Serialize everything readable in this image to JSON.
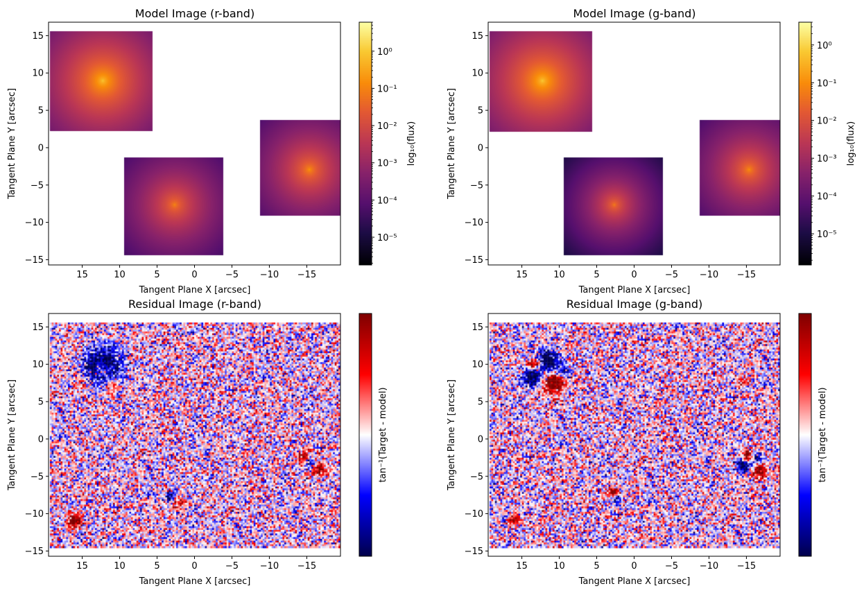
{
  "chart_data": [
    {
      "type": "image",
      "title": "Model Image (r-band)",
      "xlabel": "Tangent Plane X [arcsec]",
      "ylabel": "Tangent Plane Y [arcsec]",
      "xlim": [
        19.5,
        -19.5
      ],
      "ylim": [
        -15.7,
        16.8
      ],
      "x_ticks": [
        "15",
        "10",
        "5",
        "0",
        "−5",
        "−10",
        "−15"
      ],
      "y_ticks": [
        "15",
        "10",
        "5",
        "0",
        "−5",
        "−10",
        "−15"
      ],
      "colormap": "inferno",
      "scale": "log",
      "colorbar_label": "log₁₀(flux)",
      "colorbar_ticks": [
        "10⁰",
        "10⁻¹",
        "10⁻²",
        "10⁻³",
        "10⁻⁴",
        "10⁻⁵"
      ],
      "colorbar_range": [
        1.8e-06,
        6.0
      ],
      "sources": [
        {
          "x_range": [
            19.3,
            5.6
          ],
          "y_range": [
            2.2,
            15.6
          ],
          "center": [
            12.3,
            9.0
          ],
          "peak": 1.3,
          "floor": 0.0002
        },
        {
          "x_range": [
            9.4,
            -3.8
          ],
          "y_range": [
            -14.4,
            -1.3
          ],
          "center": [
            2.7,
            -7.6
          ],
          "peak": 0.15,
          "floor": 4e-05
        },
        {
          "x_range": [
            -8.8,
            -19.5
          ],
          "y_range": [
            -9.1,
            3.7
          ],
          "center": [
            -15.3,
            -2.9
          ],
          "peak": 0.25,
          "floor": 6e-05
        }
      ]
    },
    {
      "type": "image",
      "title": "Model Image (g-band)",
      "xlabel": "Tangent Plane X [arcsec]",
      "ylabel": "Tangent Plane Y [arcsec]",
      "xlim": [
        19.5,
        -19.5
      ],
      "ylim": [
        -15.7,
        16.8
      ],
      "x_ticks": [
        "15",
        "10",
        "5",
        "0",
        "−5",
        "−10",
        "−15"
      ],
      "y_ticks": [
        "15",
        "10",
        "5",
        "0",
        "−5",
        "−10",
        "−15"
      ],
      "colormap": "inferno",
      "scale": "log",
      "colorbar_label": "log₁₀(flux)",
      "colorbar_ticks": [
        "10⁰",
        "10⁻¹",
        "10⁻²",
        "10⁻³",
        "10⁻⁴",
        "10⁻⁵"
      ],
      "colorbar_range": [
        1.5e-06,
        4.0
      ],
      "sources": [
        {
          "x_range": [
            19.3,
            5.6
          ],
          "y_range": [
            2.1,
            15.6
          ],
          "center": [
            12.3,
            9.0
          ],
          "peak": 1.0,
          "floor": 0.0002
        },
        {
          "x_range": [
            9.4,
            -3.8
          ],
          "y_range": [
            -14.4,
            -1.3
          ],
          "center": [
            2.7,
            -7.6
          ],
          "peak": 0.08,
          "floor": 8e-06
        },
        {
          "x_range": [
            -8.8,
            -19.5
          ],
          "y_range": [
            -9.1,
            3.7
          ],
          "center": [
            -15.3,
            -2.9
          ],
          "peak": 0.15,
          "floor": 4e-05
        }
      ]
    },
    {
      "type": "image",
      "title": "Residual Image (r-band)",
      "xlabel": "Tangent Plane X [arcsec]",
      "ylabel": "Tangent Plane Y [arcsec]",
      "xlim": [
        19.5,
        -19.5
      ],
      "ylim": [
        -15.7,
        16.8
      ],
      "x_ticks": [
        "15",
        "10",
        "5",
        "0",
        "−5",
        "−10",
        "−15"
      ],
      "y_ticks": [
        "15",
        "10",
        "5",
        "0",
        "−5",
        "−10",
        "−15"
      ],
      "colormap": "seismic",
      "colorbar_label": "tan⁻¹(Target - model)",
      "data_extent": {
        "x": [
          19.3,
          -19.5
        ],
        "y": [
          -14.4,
          15.6
        ]
      },
      "features": [
        {
          "x": 12.3,
          "y": 9.6,
          "r": 2.2,
          "v": -1.4
        },
        {
          "x": 12.3,
          "y": 9.3,
          "r": 0.9,
          "v": 1.1
        },
        {
          "x": 11.3,
          "y": 7.2,
          "r": 1.2,
          "v": 0.7
        },
        {
          "x": 14.8,
          "y": 7.4,
          "r": 1.0,
          "v": 0.45
        },
        {
          "x": 16.0,
          "y": -10.9,
          "r": 0.8,
          "v": 1.3
        },
        {
          "x": 3.2,
          "y": -7.7,
          "r": 0.5,
          "v": -1.2
        },
        {
          "x": 1.9,
          "y": -8.8,
          "r": 0.8,
          "v": 0.5
        },
        {
          "x": -14.6,
          "y": -2.6,
          "r": 0.8,
          "v": 1.0
        },
        {
          "x": -15.3,
          "y": -3.1,
          "r": 0.6,
          "v": -1.2
        },
        {
          "x": -16.6,
          "y": -4.1,
          "r": 0.9,
          "v": 0.8
        }
      ]
    },
    {
      "type": "image",
      "title": "Residual Image (g-band)",
      "xlabel": "Tangent Plane X [arcsec]",
      "ylabel": "Tangent Plane Y [arcsec]",
      "xlim": [
        19.5,
        -19.5
      ],
      "ylim": [
        -15.7,
        16.8
      ],
      "x_ticks": [
        "15",
        "10",
        "5",
        "0",
        "−5",
        "−10",
        "−15"
      ],
      "y_ticks": [
        "15",
        "10",
        "5",
        "0",
        "−5",
        "−10",
        "−15"
      ],
      "colormap": "seismic",
      "colorbar_label": "tan⁻¹(Target - model)",
      "data_extent": {
        "x": [
          19.3,
          -19.5
        ],
        "y": [
          -14.4,
          15.6
        ]
      },
      "features": [
        {
          "x": 11.6,
          "y": 10.3,
          "r": 1.4,
          "v": -1.3
        },
        {
          "x": 13.2,
          "y": 9.9,
          "r": 0.8,
          "v": 1.3
        },
        {
          "x": 10.8,
          "y": 7.6,
          "r": 1.3,
          "v": 1.3
        },
        {
          "x": 13.6,
          "y": 8.2,
          "r": 1.1,
          "v": -1.3
        },
        {
          "x": 9.3,
          "y": 9.0,
          "r": 0.8,
          "v": -0.8
        },
        {
          "x": -15.1,
          "y": -2.3,
          "r": 0.6,
          "v": 1.3
        },
        {
          "x": -14.6,
          "y": -3.5,
          "r": 0.8,
          "v": -1.3
        },
        {
          "x": -16.4,
          "y": -2.6,
          "r": 0.7,
          "v": -0.8
        },
        {
          "x": -16.8,
          "y": -4.3,
          "r": 0.8,
          "v": 1.3
        },
        {
          "x": 2.8,
          "y": -7.1,
          "r": 0.5,
          "v": 1.3
        },
        {
          "x": 2.3,
          "y": -8.1,
          "r": 0.5,
          "v": -0.7
        },
        {
          "x": 16.0,
          "y": -10.9,
          "r": 0.6,
          "v": 0.9
        },
        {
          "x": -14.5,
          "y": 7.6,
          "r": 0.6,
          "v": 0.5
        }
      ]
    }
  ]
}
